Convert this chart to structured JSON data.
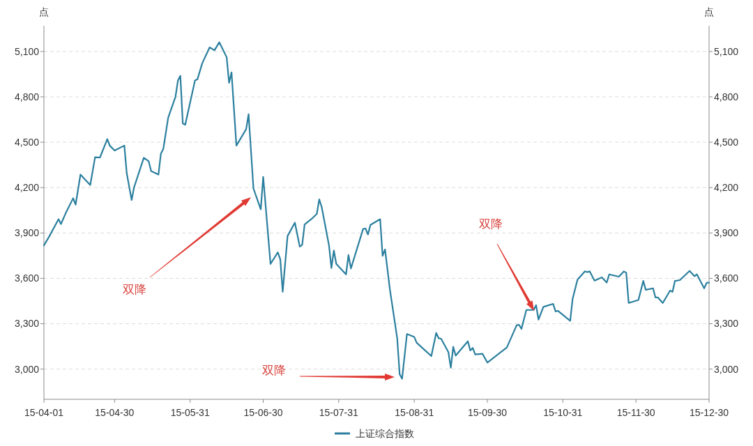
{
  "chart_data": {
    "type": "line",
    "ylabel": "点",
    "y2label": "点",
    "xlim": [
      "--04-01",
      "--12-30"
    ],
    "xticks": [
      {
        "value": "--04-01",
        "label": "15-04-01"
      },
      {
        "value": "--04-30",
        "label": "15-04-30"
      },
      {
        "value": "--05-31",
        "label": "15-05-31"
      },
      {
        "value": "--06-30",
        "label": "15-06-30"
      },
      {
        "value": "--07-31",
        "label": "15-07-31"
      },
      {
        "value": "--08-31",
        "label": "15-08-31"
      },
      {
        "value": "--09-30",
        "label": "15-09-30"
      },
      {
        "value": "--10-31",
        "label": "15-10-31"
      },
      {
        "value": "--11-30",
        "label": "15-11-30"
      },
      {
        "value": "--12-30",
        "label": "15-12-30"
      }
    ],
    "ylim": [
      2800,
      5270
    ],
    "yticks": [
      {
        "value": 3000,
        "label": "3,000"
      },
      {
        "value": 3300,
        "label": "3,300"
      },
      {
        "value": 3600,
        "label": "3,600"
      },
      {
        "value": 3900,
        "label": "3,900"
      },
      {
        "value": 4200,
        "label": "4,200"
      },
      {
        "value": 4500,
        "label": "4,500"
      },
      {
        "value": 4800,
        "label": "4,800"
      },
      {
        "value": 5100,
        "label": "5,100"
      }
    ],
    "y2lim": [
      2800,
      5270
    ],
    "y2ticks": [
      {
        "value": 3000,
        "label": "3,000"
      },
      {
        "value": 3300,
        "label": "3,300"
      },
      {
        "value": 3600,
        "label": "3,600"
      },
      {
        "value": 3900,
        "label": "3,900"
      },
      {
        "value": 4200,
        "label": "4,200"
      },
      {
        "value": 4500,
        "label": "4,500"
      },
      {
        "value": 4800,
        "label": "4,800"
      },
      {
        "value": 5100,
        "label": "5,100"
      }
    ],
    "grid": "y",
    "legend": "bottom",
    "marker": "none",
    "line_style": "solid",
    "annotations": [
      "双降",
      "双降",
      "双降"
    ],
    "series": [
      {
        "name": "上证综合指数",
        "color": "#2b7f9e",
        "x": [
          "--04-01",
          "--04-03",
          "--04-07",
          "--04-08",
          "--04-10",
          "--04-13",
          "--04-14",
          "--04-16",
          "--04-20",
          "--04-22",
          "--04-24",
          "--04-27",
          "--04-28",
          "--04-30",
          "--05-04",
          "--05-05",
          "--05-07",
          "--05-08",
          "--05-12",
          "--05-14",
          "--05-15",
          "--05-18",
          "--05-19",
          "--05-20",
          "--05-22",
          "--05-25",
          "--05-26",
          "--05-27",
          "--05-28",
          "--05-29",
          "--06-02",
          "--06-03",
          "--06-05",
          "--06-08",
          "--06-10",
          "--06-12",
          "--06-15",
          "--06-16",
          "--06-17",
          "--06-19",
          "--06-23",
          "--06-24",
          "--06-26",
          "--06-29",
          "--06-30",
          "--07-03",
          "--07-06",
          "--07-07",
          "--07-08",
          "--07-10",
          "--07-13",
          "--07-15",
          "--07-16",
          "--07-17",
          "--07-20",
          "--07-22",
          "--07-23",
          "--07-24",
          "--07-27",
          "--07-28",
          "--07-29",
          "--07-30",
          "--08-03",
          "--08-04",
          "--08-05",
          "--08-10",
          "--08-11",
          "--08-12",
          "--08-13",
          "--08-17",
          "--08-18",
          "--08-19",
          "--08-21",
          "--08-24",
          "--08-25",
          "--08-26",
          "--08-28",
          "--08-31",
          "--09-01",
          "--09-07",
          "--09-09",
          "--09-10",
          "--09-11",
          "--09-14",
          "--09-15",
          "--09-16",
          "--09-17",
          "--09-22",
          "--09-23",
          "--09-24",
          "--09-25",
          "--09-28",
          "--09-30",
          "--10-08",
          "--10-12",
          "--10-13",
          "--10-14",
          "--10-16",
          "--10-19",
          "--10-20",
          "--10-21",
          "--10-23",
          "--10-27",
          "--10-28",
          "--10-29",
          "--11-03",
          "--11-04",
          "--11-06",
          "--11-09",
          "--11-10",
          "--11-11",
          "--11-13",
          "--11-16",
          "--11-18",
          "--11-19",
          "--11-23",
          "--11-25",
          "--11-26",
          "--11-27",
          "--12-01",
          "--12-03",
          "--12-04",
          "--12-07",
          "--12-08",
          "--12-09",
          "--12-11",
          "--12-14",
          "--12-15",
          "--12-16",
          "--12-18",
          "--12-22",
          "--12-24",
          "--12-25",
          "--12-28",
          "--12-29",
          "--12-30"
        ],
        "values": [
          3818,
          3872,
          3991,
          3959,
          4033,
          4130,
          4087,
          4286,
          4217,
          4401,
          4399,
          4521,
          4478,
          4445,
          4478,
          4294,
          4118,
          4202,
          4397,
          4374,
          4309,
          4286,
          4424,
          4455,
          4662,
          4801,
          4908,
          4939,
          4624,
          4616,
          4908,
          4916,
          5023,
          5127,
          5108,
          5161,
          5062,
          4893,
          4962,
          4478,
          4586,
          4685,
          4194,
          4056,
          4271,
          3695,
          3772,
          3726,
          3511,
          3880,
          3968,
          3810,
          3821,
          3956,
          3995,
          4026,
          4122,
          4072,
          3818,
          3668,
          3784,
          3695,
          3626,
          3754,
          3665,
          3926,
          3930,
          3890,
          3953,
          3991,
          3749,
          3791,
          3526,
          3204,
          2966,
          2936,
          3232,
          3212,
          3174,
          3086,
          3239,
          3204,
          3201,
          3112,
          3009,
          3147,
          3089,
          3184,
          3123,
          3140,
          3097,
          3101,
          3043,
          3143,
          3289,
          3293,
          3266,
          3391,
          3391,
          3422,
          3327,
          3411,
          3431,
          3381,
          3385,
          3319,
          3465,
          3591,
          3646,
          3641,
          3646,
          3585,
          3606,
          3572,
          3626,
          3611,
          3646,
          3637,
          3437,
          3457,
          3583,
          3524,
          3534,
          3473,
          3473,
          3437,
          3519,
          3511,
          3583,
          3588,
          3649,
          3614,
          3626,
          3534,
          3570,
          3572
        ]
      }
    ]
  }
}
